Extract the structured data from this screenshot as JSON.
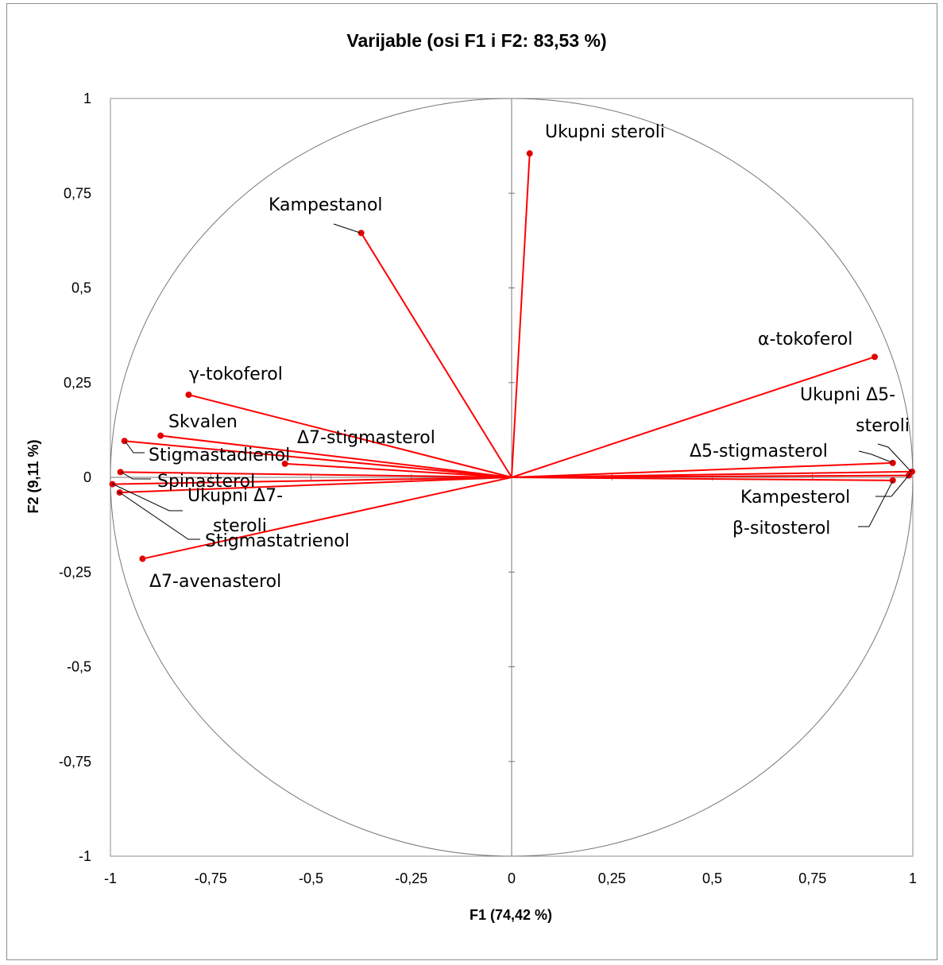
{
  "chart_data": {
    "type": "scatter",
    "title": "Varijable (osi F1 i F2: 83,53 %)",
    "xlabel": "F1 (74,42 %)",
    "ylabel": "F2 (9,11 %)",
    "xlim": [
      -1,
      1
    ],
    "ylim": [
      -1,
      1
    ],
    "xticks": [
      "-1",
      "-0,75",
      "-0,5",
      "-0,25",
      "0",
      "0,25",
      "0,5",
      "0,75",
      "1"
    ],
    "yticks": [
      "1",
      "0,75",
      "0,5",
      "0,25",
      "0",
      "-0,25",
      "-0,5",
      "-0,75",
      "-1"
    ],
    "unit_circle": true,
    "grid": false,
    "line_color": "#ff0000",
    "point_color": "#e00000",
    "variables": [
      {
        "name": "Ukupni steroli",
        "x": 0.045,
        "y": 0.855
      },
      {
        "name": "Kampestanol",
        "x": -0.375,
        "y": 0.645
      },
      {
        "name": "α-tokoferol",
        "x": 0.905,
        "y": 0.318
      },
      {
        "name": "γ-tokoferol",
        "x": -0.805,
        "y": 0.218
      },
      {
        "name": "Skvalen",
        "x": -0.875,
        "y": 0.11
      },
      {
        "name": "Δ7-stigmasterol",
        "x": -0.565,
        "y": 0.036
      },
      {
        "name": "Stigmastadienol",
        "x": -0.965,
        "y": 0.096
      },
      {
        "name": "Spinasterol",
        "x": -0.975,
        "y": 0.014
      },
      {
        "name": "Ukupni Δ7-steroli",
        "x": -0.995,
        "y": -0.018
      },
      {
        "name": "Stigmastatrienol",
        "x": -0.977,
        "y": -0.04
      },
      {
        "name": "Δ7-avenasterol",
        "x": -0.92,
        "y": -0.215
      },
      {
        "name": "Ukupni Δ5-steroli",
        "x": 0.998,
        "y": 0.015
      },
      {
        "name": "Δ5-stigmasterol",
        "x": 0.95,
        "y": 0.038
      },
      {
        "name": "Kampesterol",
        "x": 0.99,
        "y": 0.005
      },
      {
        "name": "β-sitosterol",
        "x": 0.95,
        "y": -0.008
      }
    ]
  }
}
